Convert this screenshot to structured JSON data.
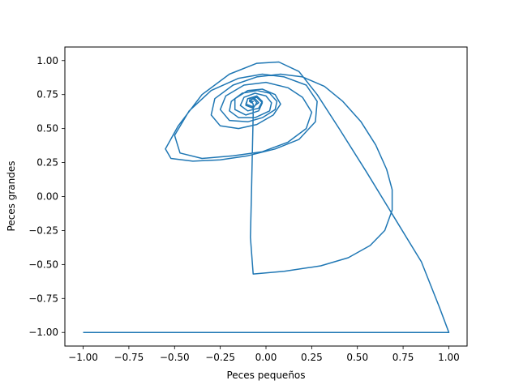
{
  "chart_data": {
    "type": "line",
    "title": "",
    "xlabel": "Peces pequeños",
    "ylabel": "Peces grandes",
    "xlim": [
      -1.1,
      1.1
    ],
    "ylim": [
      -1.1,
      1.1
    ],
    "grid": false,
    "line_color": "#1f77b4",
    "x_ticks": [
      {
        "value": -1.0,
        "label": "−1.00"
      },
      {
        "value": -0.75,
        "label": "−0.75"
      },
      {
        "value": -0.5,
        "label": "−0.50"
      },
      {
        "value": -0.25,
        "label": "−0.25"
      },
      {
        "value": 0.0,
        "label": "0.00"
      },
      {
        "value": 0.25,
        "label": "0.25"
      },
      {
        "value": 0.5,
        "label": "0.50"
      },
      {
        "value": 0.75,
        "label": "0.75"
      },
      {
        "value": 1.0,
        "label": "1.00"
      }
    ],
    "y_ticks": [
      {
        "value": -1.0,
        "label": "−1.00"
      },
      {
        "value": -0.75,
        "label": "−0.75"
      },
      {
        "value": -0.5,
        "label": "−0.50"
      },
      {
        "value": -0.25,
        "label": "−0.25"
      },
      {
        "value": 0.0,
        "label": "0.00"
      },
      {
        "value": 0.25,
        "label": "0.25"
      },
      {
        "value": 0.5,
        "label": "0.50"
      },
      {
        "value": 0.75,
        "label": "0.75"
      },
      {
        "value": 1.0,
        "label": "1.00"
      }
    ],
    "series": [
      {
        "points": [
          [
            -1.0,
            -1.0
          ],
          [
            -0.6,
            -1.0
          ],
          [
            0.0,
            -1.0
          ],
          [
            0.5,
            -1.0
          ],
          [
            0.9,
            -1.0
          ],
          [
            1.0,
            -1.0
          ],
          [
            0.95,
            -0.82
          ],
          [
            0.85,
            -0.48
          ],
          [
            0.7,
            -0.15
          ],
          [
            0.55,
            0.18
          ],
          [
            0.4,
            0.5
          ],
          [
            0.28,
            0.75
          ],
          [
            0.18,
            0.92
          ],
          [
            0.07,
            0.99
          ],
          [
            -0.05,
            0.98
          ],
          [
            -0.2,
            0.9
          ],
          [
            -0.35,
            0.75
          ],
          [
            -0.48,
            0.52
          ],
          [
            -0.55,
            0.35
          ],
          [
            -0.52,
            0.28
          ],
          [
            -0.4,
            0.26
          ],
          [
            -0.25,
            0.27
          ],
          [
            -0.1,
            0.3
          ],
          [
            0.05,
            0.35
          ],
          [
            0.18,
            0.42
          ],
          [
            0.27,
            0.55
          ],
          [
            0.28,
            0.7
          ],
          [
            0.22,
            0.82
          ],
          [
            0.1,
            0.88
          ],
          [
            -0.02,
            0.9
          ],
          [
            -0.15,
            0.87
          ],
          [
            -0.3,
            0.78
          ],
          [
            -0.42,
            0.63
          ],
          [
            -0.5,
            0.45
          ],
          [
            -0.47,
            0.32
          ],
          [
            -0.35,
            0.28
          ],
          [
            -0.18,
            0.3
          ],
          [
            -0.02,
            0.33
          ],
          [
            0.12,
            0.4
          ],
          [
            0.22,
            0.5
          ],
          [
            0.25,
            0.62
          ],
          [
            0.2,
            0.73
          ],
          [
            0.12,
            0.8
          ],
          [
            0.0,
            0.84
          ],
          [
            -0.12,
            0.82
          ],
          [
            -0.22,
            0.74
          ],
          [
            -0.25,
            0.64
          ],
          [
            -0.2,
            0.56
          ],
          [
            -0.1,
            0.55
          ],
          [
            -0.02,
            0.58
          ],
          [
            0.05,
            0.64
          ],
          [
            0.06,
            0.7
          ],
          [
            0.02,
            0.76
          ],
          [
            -0.05,
            0.78
          ],
          [
            -0.13,
            0.76
          ],
          [
            -0.19,
            0.7
          ],
          [
            -0.2,
            0.63
          ],
          [
            -0.15,
            0.58
          ],
          [
            -0.06,
            0.58
          ],
          [
            0.02,
            0.63
          ],
          [
            0.03,
            0.69
          ],
          [
            0.0,
            0.74
          ],
          [
            -0.06,
            0.76
          ],
          [
            -0.12,
            0.73
          ],
          [
            -0.14,
            0.67
          ],
          [
            -0.1,
            0.63
          ],
          [
            -0.04,
            0.65
          ],
          [
            -0.02,
            0.7
          ],
          [
            -0.05,
            0.74
          ],
          [
            -0.1,
            0.72
          ],
          [
            -0.11,
            0.68
          ],
          [
            -0.07,
            0.66
          ],
          [
            -0.04,
            0.69
          ],
          [
            -0.06,
            0.72
          ],
          [
            -0.09,
            0.71
          ],
          [
            -0.08,
            0.69
          ],
          [
            -0.07,
            0.7
          ],
          [
            -0.08,
            0.7
          ],
          [
            -0.08,
            0.7
          ],
          [
            -0.07,
            0.68
          ],
          [
            -0.07,
            0.6
          ],
          [
            -0.075,
            0.3
          ],
          [
            -0.08,
            0.0
          ],
          [
            -0.085,
            -0.3
          ],
          [
            -0.07,
            -0.57
          ],
          [
            0.1,
            -0.55
          ],
          [
            0.3,
            -0.51
          ],
          [
            0.45,
            -0.45
          ],
          [
            0.57,
            -0.36
          ],
          [
            0.65,
            -0.25
          ],
          [
            0.69,
            -0.1
          ],
          [
            0.69,
            0.05
          ],
          [
            0.66,
            0.2
          ],
          [
            0.6,
            0.38
          ],
          [
            0.52,
            0.55
          ],
          [
            0.42,
            0.7
          ],
          [
            0.32,
            0.81
          ],
          [
            0.2,
            0.88
          ],
          [
            0.08,
            0.9
          ],
          [
            -0.05,
            0.88
          ],
          [
            -0.18,
            0.82
          ],
          [
            -0.28,
            0.72
          ],
          [
            -0.3,
            0.6
          ],
          [
            -0.25,
            0.52
          ],
          [
            -0.15,
            0.5
          ],
          [
            -0.05,
            0.53
          ],
          [
            0.04,
            0.6
          ],
          [
            0.08,
            0.68
          ],
          [
            0.05,
            0.75
          ],
          [
            -0.02,
            0.79
          ],
          [
            -0.1,
            0.78
          ],
          [
            -0.17,
            0.72
          ],
          [
            -0.17,
            0.64
          ],
          [
            -0.11,
            0.6
          ],
          [
            -0.04,
            0.63
          ],
          [
            -0.02,
            0.69
          ],
          [
            -0.05,
            0.73
          ],
          [
            -0.1,
            0.72
          ],
          [
            -0.11,
            0.67
          ],
          [
            -0.07,
            0.65
          ],
          [
            -0.05,
            0.69
          ],
          [
            -0.07,
            0.72
          ],
          [
            -0.09,
            0.7
          ],
          [
            -0.08,
            0.69
          ],
          [
            -0.08,
            0.7
          ]
        ]
      }
    ]
  }
}
